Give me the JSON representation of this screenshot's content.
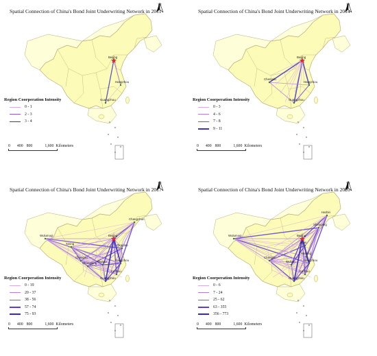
{
  "map_legend_title": "Region Coorperation Intensity",
  "scale": {
    "ticks": [
      "0",
      "400",
      "800",
      "1,600"
    ],
    "unit": "Kilometers"
  },
  "north_label": "N",
  "colors": {
    "land": "#fdfbb8",
    "neighbor": "#fefed8",
    "border": "#b7ad77",
    "capital": "#e5262a",
    "line_low": "#d6a0e6",
    "line_mid": "#9d5de6",
    "line_high": "#4b2ed0"
  },
  "panels": [
    {
      "id": "2011",
      "title": "Spatial Connection of  China's Bond Joint Underwriting Network in 2011",
      "legend": [
        {
          "label": "0 - 1",
          "color": "#d8a8e8",
          "width": 0.8
        },
        {
          "label": "2 - 3",
          "color": "#8f55e0",
          "width": 1.3
        },
        {
          "label": "3 - 4",
          "color": "#3a2fd0",
          "width": 1.8
        }
      ],
      "cities": [
        "Beijing",
        "Hangzhou",
        "Guangzhou"
      ]
    },
    {
      "id": "2014",
      "title": "Spatial Connection of  China's Bond Joint Underwriting Network in 2014",
      "legend": [
        {
          "label": "0 - 3",
          "color": "#d8a8e8",
          "width": 0.8
        },
        {
          "label": "4 - 6",
          "color": "#b07ae8",
          "width": 1.2
        },
        {
          "label": "7 - 8",
          "color": "#7d4be0",
          "width": 1.6
        },
        {
          "label": "9 - 11",
          "color": "#3a2fd0",
          "width": 2.2
        }
      ],
      "cities": [
        "Beijing",
        "Chengdu",
        "Hangzhou",
        "Guangzhou"
      ]
    },
    {
      "id": "2017",
      "title": "Spatial Connection of  China's Bond Joint Underwriting Network in 2017",
      "legend": [
        {
          "label": "0 - 19",
          "color": "#d8a8e8",
          "width": 0.8
        },
        {
          "label": "20 - 37",
          "color": "#b07ae8",
          "width": 1.2
        },
        {
          "label": "38 - 56",
          "color": "#8f55e0",
          "width": 1.6
        },
        {
          "label": "57 - 74",
          "color": "#5d3bd8",
          "width": 2.0
        },
        {
          "label": "75 - 93",
          "color": "#2f25c8",
          "width": 2.6
        }
      ],
      "cities": [
        "Wulumuqi",
        "Changchun",
        "Beijing",
        "Qingdao",
        "Xining",
        "Chengdu",
        "Wuhan",
        "Chongqing",
        "Hangzhou",
        "Fuzhou",
        "Guangzhou"
      ]
    },
    {
      "id": "2020",
      "title": "Spatial Connection of  China's Bond Joint Underwriting Network in 2020",
      "legend": [
        {
          "label": "0 - 6",
          "color": "#d8a8e8",
          "width": 0.8
        },
        {
          "label": "7 - 24",
          "color": "#b07ae8",
          "width": 1.2
        },
        {
          "label": "25 - 62",
          "color": "#8f55e0",
          "width": 1.6
        },
        {
          "label": "63 - 355",
          "color": "#5d3bd8",
          "width": 2.0
        },
        {
          "label": "356 - 773",
          "color": "#2f25c8",
          "width": 2.6
        }
      ],
      "cities": [
        "Harbin",
        "Wulumuqi",
        "Shenyang",
        "Beijing",
        "Jinan",
        "Chengdu",
        "Wuhan",
        "Nanjing",
        "Hangzhou",
        "Fuzhou",
        "Guangzhou"
      ]
    }
  ]
}
